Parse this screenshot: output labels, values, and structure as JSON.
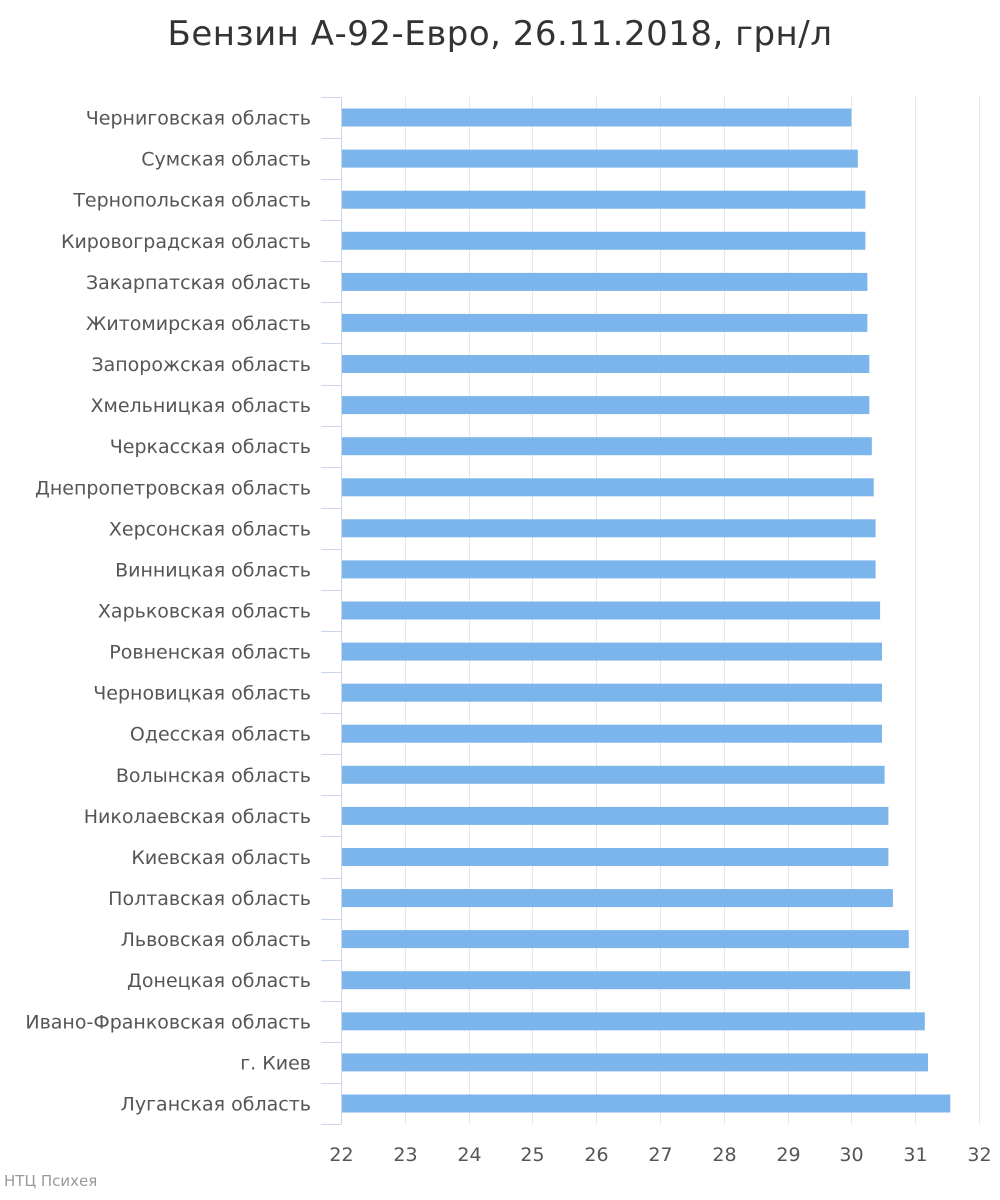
{
  "chart_data": {
    "type": "bar",
    "orientation": "horizontal",
    "title": "Бензин А-92-Евро, 26.11.2018, грн/л",
    "xlabel": "",
    "ylabel": "",
    "categories": [
      "Черниговская область",
      "Сумская область",
      "Тернопольская область",
      "Кировоградская область",
      "Закарпатская область",
      "Житомирская область",
      "Запорожская область",
      "Хмельницкая область",
      "Черкасская область",
      "Днепропетровская область",
      "Херсонская область",
      "Винницкая область",
      "Харьковская область",
      "Ровненская область",
      "Черновицкая область",
      "Одесская область",
      "Волынская область",
      "Николаевская область",
      "Киевская область",
      "Полтавская область",
      "Львовская область",
      "Донецкая область",
      "Ивано-Франковская область",
      "г. Киев",
      "Луганская область"
    ],
    "values": [
      30.0,
      30.1,
      30.22,
      30.22,
      30.25,
      30.25,
      30.28,
      30.28,
      30.32,
      30.35,
      30.38,
      30.38,
      30.45,
      30.48,
      30.48,
      30.48,
      30.52,
      30.58,
      30.58,
      30.65,
      30.9,
      30.92,
      31.15,
      31.2,
      31.55
    ],
    "xlim": [
      22,
      32
    ],
    "ticks": [
      "22",
      "23",
      "24",
      "25",
      "26",
      "27",
      "28",
      "29",
      "30",
      "31",
      "32"
    ],
    "grid": true,
    "legend": "none",
    "bar_color": "#7cb5ec"
  },
  "credits": "НТЦ Психея"
}
